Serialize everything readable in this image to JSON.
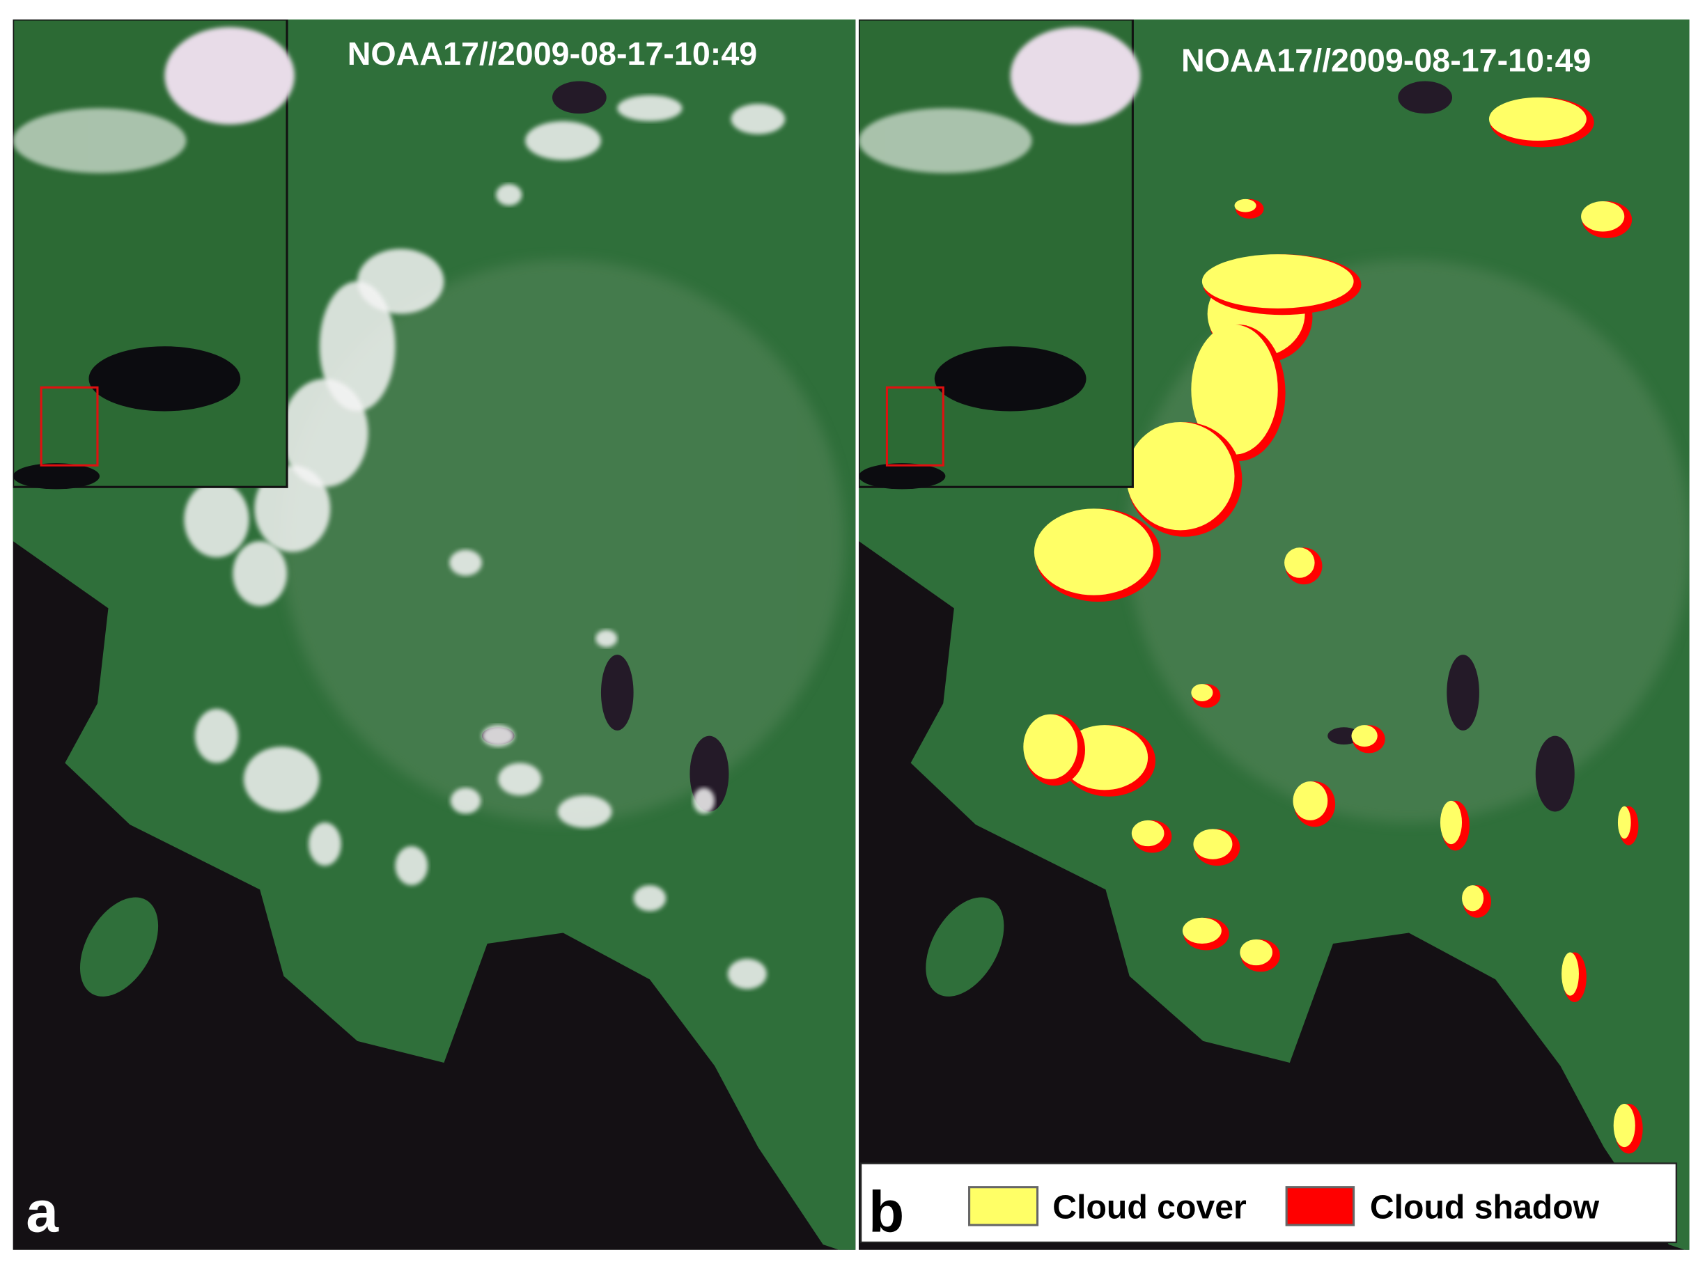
{
  "panel_a": {
    "label": "a",
    "timestamp": "NOAA17//2009-08-17-10:49"
  },
  "panel_b": {
    "label": "b",
    "timestamp": "NOAA17//2009-08-17-10:49",
    "legend": [
      {
        "name": "Cloud cover",
        "color": "#ffff66"
      },
      {
        "name": "Cloud shadow",
        "color": "#ff0000"
      }
    ]
  }
}
